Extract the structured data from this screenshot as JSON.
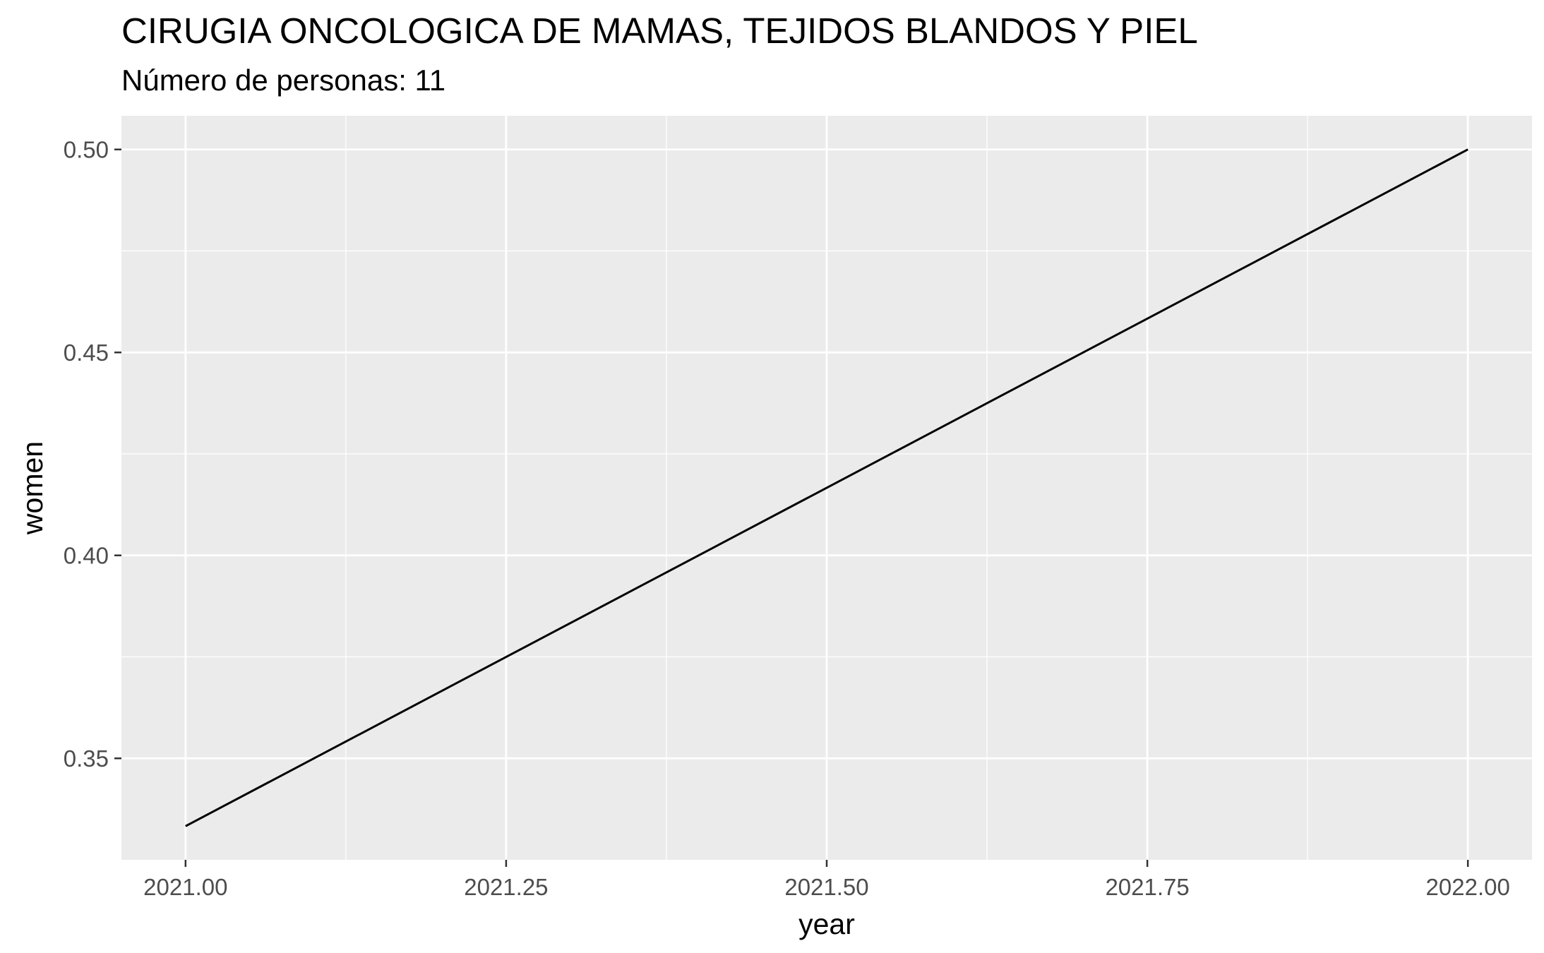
{
  "chart_data": {
    "type": "line",
    "title": "CIRUGIA ONCOLOGICA DE MAMAS, TEJIDOS BLANDOS Y PIEL",
    "subtitle": "Número de personas: 11",
    "xlabel": "year",
    "ylabel": "women",
    "x": [
      2021.0,
      2022.0
    ],
    "series": [
      {
        "values": [
          0.3333,
          0.5
        ],
        "color": "#000000"
      }
    ],
    "xlim": [
      2020.95,
      2022.05
    ],
    "ylim": [
      0.325,
      0.5083
    ],
    "xticks": [
      2021.0,
      2021.25,
      2021.5,
      2021.75,
      2022.0
    ],
    "xtick_labels": [
      "2021.00",
      "2021.25",
      "2021.50",
      "2021.75",
      "2022.00"
    ],
    "yticks": [
      0.35,
      0.4,
      0.45,
      0.5
    ],
    "ytick_labels": [
      "0.35",
      "0.40",
      "0.45",
      "0.50"
    ],
    "grid": true,
    "panel_color": "#ebebeb",
    "grid_color": "#ffffff"
  }
}
